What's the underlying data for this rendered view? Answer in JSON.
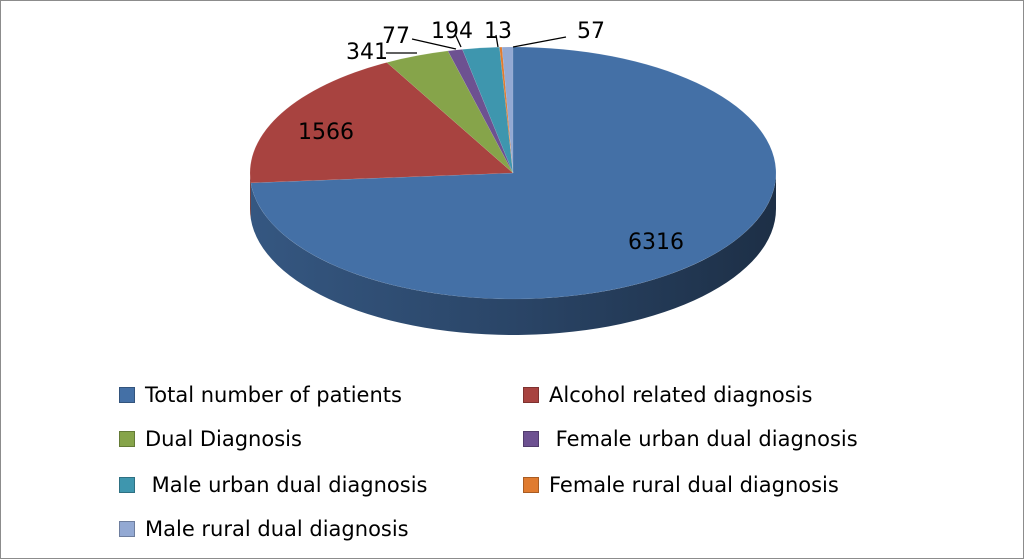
{
  "chart_data": {
    "type": "pie",
    "style": "3d",
    "start_angle": "12 o'clock, clockwise",
    "categories": [
      "Total number of patients",
      "Alcohol related diagnosis",
      "Dual Diagnosis",
      "Female urban dual diagnosis",
      "Male urban dual diagnosis",
      "Female rural dual diagnosis",
      "Male rural dual diagnosis"
    ],
    "legend_labels": [
      "Total number of patients",
      "Alcohol related diagnosis",
      "Dual Diagnosis",
      " Female urban dual diagnosis",
      " Male urban dual diagnosis",
      "Female rural dual diagnosis",
      "Male rural dual diagnosis"
    ],
    "values": [
      6316,
      1566,
      341,
      77,
      194,
      13,
      57
    ],
    "data_labels": [
      "6316",
      "1566",
      "341",
      "77",
      "194",
      "13",
      "57"
    ],
    "colors": [
      "#4470a6",
      "#a84340",
      "#86a44a",
      "#6d5191",
      "#3e96ae",
      "#e07b2f",
      "#93a9d3"
    ],
    "legend_position": "bottom"
  }
}
